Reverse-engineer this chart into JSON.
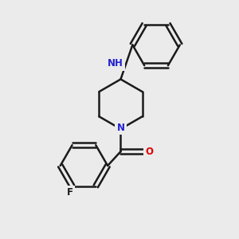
{
  "background_color": "#ebebeb",
  "bond_color": "#1a1a1a",
  "N_color": "#2222cc",
  "O_color": "#dd0000",
  "F_color": "#1a1a1a",
  "bond_width": 1.8,
  "figsize": [
    3.0,
    3.0
  ],
  "dpi": 100,
  "xlim": [
    0,
    10
  ],
  "ylim": [
    0,
    10
  ]
}
